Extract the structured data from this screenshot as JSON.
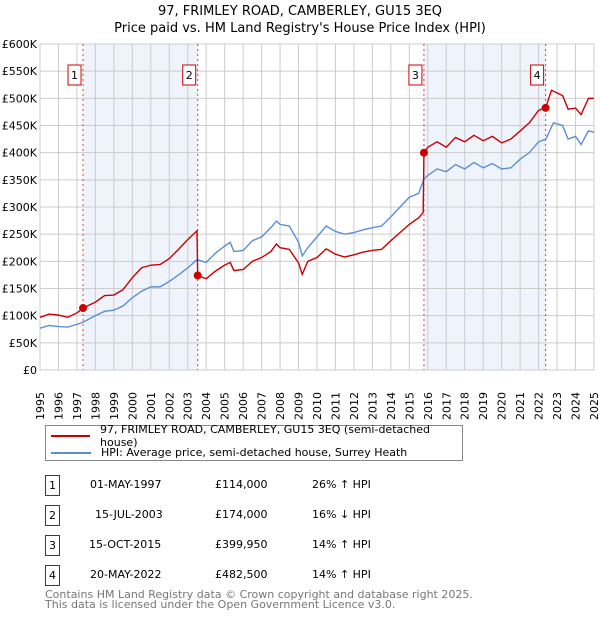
{
  "chart_data": {
    "type": "line",
    "title": "97, FRIMLEY ROAD, CAMBERLEY, GU15 3EQ",
    "subtitle": "Price paid vs. HM Land Registry's House Price Index (HPI)",
    "xlim": [
      1995,
      2025
    ],
    "ylim": [
      0,
      600000
    ],
    "yticks": [
      {
        "v": 0,
        "label": "£0"
      },
      {
        "v": 50000,
        "label": "£50K"
      },
      {
        "v": 100000,
        "label": "£100K"
      },
      {
        "v": 150000,
        "label": "£150K"
      },
      {
        "v": 200000,
        "label": "£200K"
      },
      {
        "v": 250000,
        "label": "£250K"
      },
      {
        "v": 300000,
        "label": "£300K"
      },
      {
        "v": 350000,
        "label": "£350K"
      },
      {
        "v": 400000,
        "label": "£400K"
      },
      {
        "v": 450000,
        "label": "£450K"
      },
      {
        "v": 500000,
        "label": "£500K"
      },
      {
        "v": 550000,
        "label": "£550K"
      },
      {
        "v": 600000,
        "label": "£600K"
      }
    ],
    "xticks": [
      "1995",
      "1996",
      "1997",
      "1998",
      "1999",
      "2000",
      "2001",
      "2002",
      "2003",
      "2004",
      "2005",
      "2006",
      "2007",
      "2008",
      "2009",
      "2010",
      "2011",
      "2012",
      "2013",
      "2014",
      "2015",
      "2016",
      "2017",
      "2018",
      "2019",
      "2020",
      "2021",
      "2022",
      "2023",
      "2024",
      "2025"
    ],
    "grid": true,
    "shaded_periods": [
      [
        1997.33,
        2003.54
      ],
      [
        2015.79,
        2022.38
      ]
    ],
    "series": [
      {
        "name": "97, FRIMLEY ROAD, CAMBERLEY, GU15 3EQ (semi-detached house)",
        "color": "#cc0000",
        "points": [
          [
            1995,
            97000
          ],
          [
            1995.5,
            103000
          ],
          [
            1996,
            101000
          ],
          [
            1996.5,
            97000
          ],
          [
            1997,
            105000
          ],
          [
            1997.33,
            114000
          ],
          [
            1998,
            125000
          ],
          [
            1998.5,
            137000
          ],
          [
            1999,
            138000
          ],
          [
            1999.5,
            148000
          ],
          [
            2000,
            170000
          ],
          [
            2000.5,
            188000
          ],
          [
            2001,
            193000
          ],
          [
            2001.5,
            194000
          ],
          [
            2002,
            205000
          ],
          [
            2002.5,
            222000
          ],
          [
            2003,
            240000
          ],
          [
            2003.5,
            256000
          ],
          [
            2003.54,
            174000
          ],
          [
            2004,
            168000
          ],
          [
            2004.5,
            182000
          ],
          [
            2005,
            193000
          ],
          [
            2005.3,
            198000
          ],
          [
            2005.5,
            183000
          ],
          [
            2006,
            185000
          ],
          [
            2006.5,
            200000
          ],
          [
            2007,
            207000
          ],
          [
            2007.5,
            218000
          ],
          [
            2007.8,
            232000
          ],
          [
            2008,
            225000
          ],
          [
            2008.5,
            222000
          ],
          [
            2009,
            197000
          ],
          [
            2009.2,
            176000
          ],
          [
            2009.5,
            200000
          ],
          [
            2010,
            207000
          ],
          [
            2010.5,
            223000
          ],
          [
            2011,
            213000
          ],
          [
            2011.5,
            208000
          ],
          [
            2012,
            212000
          ],
          [
            2012.5,
            217000
          ],
          [
            2013,
            220000
          ],
          [
            2013.5,
            222000
          ],
          [
            2014,
            238000
          ],
          [
            2014.5,
            253000
          ],
          [
            2015,
            268000
          ],
          [
            2015.5,
            280000
          ],
          [
            2015.75,
            290000
          ],
          [
            2015.79,
            399950
          ],
          [
            2016,
            410000
          ],
          [
            2016.5,
            420000
          ],
          [
            2017,
            410000
          ],
          [
            2017.5,
            428000
          ],
          [
            2018,
            420000
          ],
          [
            2018.5,
            432000
          ],
          [
            2019,
            422000
          ],
          [
            2019.5,
            430000
          ],
          [
            2020,
            418000
          ],
          [
            2020.5,
            425000
          ],
          [
            2021,
            440000
          ],
          [
            2021.5,
            455000
          ],
          [
            2022,
            478000
          ],
          [
            2022.38,
            482500
          ],
          [
            2022.7,
            515000
          ],
          [
            2023.3,
            505000
          ],
          [
            2023.6,
            480000
          ],
          [
            2024,
            482000
          ],
          [
            2024.3,
            470000
          ],
          [
            2024.7,
            500000
          ],
          [
            2025,
            500000
          ]
        ]
      },
      {
        "name": "HPI: Average price, semi-detached house, Surrey Heath",
        "color": "#5b8fd4",
        "points": [
          [
            1995,
            77000
          ],
          [
            1995.5,
            82000
          ],
          [
            1996,
            80000
          ],
          [
            1996.5,
            79000
          ],
          [
            1997,
            84000
          ],
          [
            1997.33,
            88000
          ],
          [
            1998,
            100000
          ],
          [
            1998.5,
            108000
          ],
          [
            1999,
            110000
          ],
          [
            1999.5,
            118000
          ],
          [
            2000,
            133000
          ],
          [
            2000.5,
            145000
          ],
          [
            2001,
            153000
          ],
          [
            2001.5,
            153000
          ],
          [
            2002,
            163000
          ],
          [
            2002.5,
            175000
          ],
          [
            2003,
            188000
          ],
          [
            2003.5,
            203000
          ],
          [
            2004,
            198000
          ],
          [
            2004.5,
            215000
          ],
          [
            2005,
            228000
          ],
          [
            2005.3,
            235000
          ],
          [
            2005.5,
            218000
          ],
          [
            2006,
            220000
          ],
          [
            2006.5,
            238000
          ],
          [
            2007,
            245000
          ],
          [
            2007.5,
            262000
          ],
          [
            2007.8,
            274000
          ],
          [
            2008,
            268000
          ],
          [
            2008.5,
            265000
          ],
          [
            2009,
            235000
          ],
          [
            2009.2,
            210000
          ],
          [
            2009.5,
            225000
          ],
          [
            2010,
            245000
          ],
          [
            2010.5,
            265000
          ],
          [
            2011,
            255000
          ],
          [
            2011.5,
            250000
          ],
          [
            2012,
            253000
          ],
          [
            2012.5,
            258000
          ],
          [
            2013,
            262000
          ],
          [
            2013.5,
            265000
          ],
          [
            2014,
            282000
          ],
          [
            2014.5,
            300000
          ],
          [
            2015,
            318000
          ],
          [
            2015.5,
            325000
          ],
          [
            2015.8,
            352000
          ],
          [
            2016,
            358000
          ],
          [
            2016.5,
            370000
          ],
          [
            2017,
            365000
          ],
          [
            2017.5,
            378000
          ],
          [
            2018,
            370000
          ],
          [
            2018.5,
            382000
          ],
          [
            2019,
            372000
          ],
          [
            2019.5,
            380000
          ],
          [
            2020,
            370000
          ],
          [
            2020.5,
            372000
          ],
          [
            2021,
            388000
          ],
          [
            2021.5,
            400000
          ],
          [
            2022,
            420000
          ],
          [
            2022.4,
            425000
          ],
          [
            2022.8,
            455000
          ],
          [
            2023.3,
            450000
          ],
          [
            2023.6,
            425000
          ],
          [
            2024,
            430000
          ],
          [
            2024.3,
            415000
          ],
          [
            2024.7,
            440000
          ],
          [
            2025,
            438000
          ]
        ]
      }
    ],
    "sales": [
      {
        "id": "1",
        "x": 1997.33,
        "price": 114000,
        "date": "01-MAY-1997",
        "price_label": "£114,000",
        "hpi": "26% ↑ HPI"
      },
      {
        "id": "2",
        "x": 2003.54,
        "price": 174000,
        "date": "15-JUL-2003",
        "price_label": "£174,000",
        "hpi": "16% ↓ HPI"
      },
      {
        "id": "3",
        "x": 2015.79,
        "price": 399950,
        "date": "15-OCT-2015",
        "price_label": "£399,950",
        "hpi": "14% ↑ HPI"
      },
      {
        "id": "4",
        "x": 2022.38,
        "price": 482500,
        "date": "20-MAY-2022",
        "price_label": "£482,500",
        "hpi": "14% ↑ HPI"
      }
    ],
    "legend_position": "bottom"
  },
  "footer": {
    "line1": "Contains HM Land Registry data © Crown copyright and database right 2025.",
    "line2": "This data is licensed under the Open Government Licence v3.0."
  }
}
